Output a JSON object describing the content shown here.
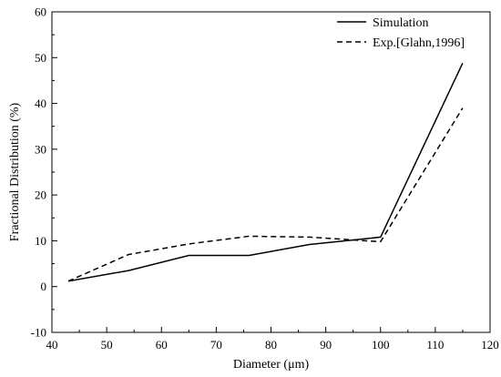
{
  "chart_data": {
    "type": "line",
    "title": "",
    "xlabel": "Diameter (μm)",
    "ylabel": "Fractional Distribution (%)",
    "xlim": [
      40,
      120
    ],
    "ylim": [
      -10,
      60
    ],
    "xticks": [
      40,
      50,
      60,
      70,
      80,
      90,
      100,
      110,
      120
    ],
    "yticks": [
      -10,
      0,
      10,
      20,
      30,
      40,
      50,
      60
    ],
    "grid": false,
    "legend_position": "top-right",
    "series": [
      {
        "name": "Simulation",
        "style": "solid",
        "color": "#000000",
        "x": [
          43,
          54,
          65,
          76,
          87,
          100,
          115
        ],
        "y": [
          1.2,
          3.5,
          6.8,
          6.8,
          9.2,
          10.8,
          48.8
        ]
      },
      {
        "name": "Exp.[Glahn,1996]",
        "style": "dashed",
        "color": "#000000",
        "x": [
          43,
          54,
          65,
          76,
          87,
          100,
          115
        ],
        "y": [
          1.2,
          7.0,
          9.3,
          11.0,
          10.8,
          9.8,
          39.0
        ]
      }
    ]
  }
}
